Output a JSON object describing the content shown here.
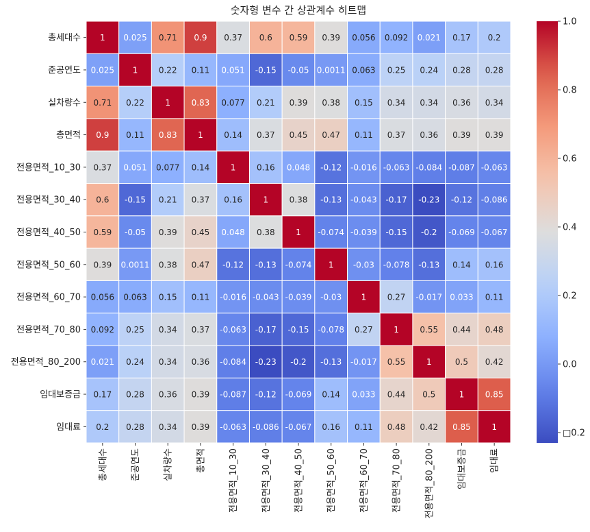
{
  "chart_data": {
    "type": "heatmap",
    "title": "숫자형 변수 간 상관계수 히트맵",
    "labels": [
      "총세대수",
      "준공연도",
      "실차량수",
      "총면적",
      "전용면적_10_30",
      "전용면적_30_40",
      "전용면적_40_50",
      "전용면적_50_60",
      "전용면적_60_70",
      "전용면적_70_80",
      "전용면적_80_200",
      "임대보증금",
      "임대료"
    ],
    "values": [
      [
        1,
        0.025,
        0.71,
        0.9,
        0.37,
        0.6,
        0.59,
        0.39,
        0.056,
        0.092,
        0.021,
        0.17,
        0.2
      ],
      [
        0.025,
        1,
        0.22,
        0.11,
        0.051,
        -0.15,
        -0.05,
        0.0011,
        0.063,
        0.25,
        0.24,
        0.28,
        0.28
      ],
      [
        0.71,
        0.22,
        1,
        0.83,
        0.077,
        0.21,
        0.39,
        0.38,
        0.15,
        0.34,
        0.34,
        0.36,
        0.34
      ],
      [
        0.9,
        0.11,
        0.83,
        1,
        0.14,
        0.37,
        0.45,
        0.47,
        0.11,
        0.37,
        0.36,
        0.39,
        0.39
      ],
      [
        0.37,
        0.051,
        0.077,
        0.14,
        1,
        0.16,
        0.048,
        -0.12,
        -0.016,
        -0.063,
        -0.084,
        -0.087,
        -0.063
      ],
      [
        0.6,
        -0.15,
        0.21,
        0.37,
        0.16,
        1,
        0.38,
        -0.13,
        -0.043,
        -0.17,
        -0.23,
        -0.12,
        -0.086
      ],
      [
        0.59,
        -0.05,
        0.39,
        0.45,
        0.048,
        0.38,
        1,
        -0.074,
        -0.039,
        -0.15,
        -0.2,
        -0.069,
        -0.067
      ],
      [
        0.39,
        0.0011,
        0.38,
        0.47,
        -0.12,
        -0.13,
        -0.074,
        1,
        -0.03,
        -0.078,
        -0.13,
        0.14,
        0.16
      ],
      [
        0.056,
        0.063,
        0.15,
        0.11,
        -0.016,
        -0.043,
        -0.039,
        -0.03,
        1,
        0.27,
        -0.017,
        0.033,
        0.11
      ],
      [
        0.092,
        0.25,
        0.34,
        0.37,
        -0.063,
        -0.17,
        -0.15,
        -0.078,
        0.27,
        1,
        0.55,
        0.44,
        0.48
      ],
      [
        0.021,
        0.24,
        0.34,
        0.36,
        -0.084,
        -0.23,
        -0.2,
        -0.13,
        -0.017,
        0.55,
        1,
        0.5,
        0.42
      ],
      [
        0.17,
        0.28,
        0.36,
        0.39,
        -0.087,
        -0.12,
        -0.069,
        0.14,
        0.033,
        0.44,
        0.5,
        1,
        0.85
      ],
      [
        0.2,
        0.28,
        0.34,
        0.39,
        -0.063,
        -0.086,
        -0.067,
        0.16,
        0.11,
        0.48,
        0.42,
        0.85,
        1
      ]
    ],
    "colormap": "coolwarm",
    "vrange": [
      -0.23,
      1
    ],
    "colorbar_ticks": [
      1.0,
      0.8,
      0.6,
      0.4,
      0.2,
      0.0,
      -0.2
    ],
    "colorbar_tick_labels": [
      "1.0",
      "0.8",
      "0.6",
      "0.4",
      "0.2",
      "0.0",
      "□0.2"
    ]
  }
}
